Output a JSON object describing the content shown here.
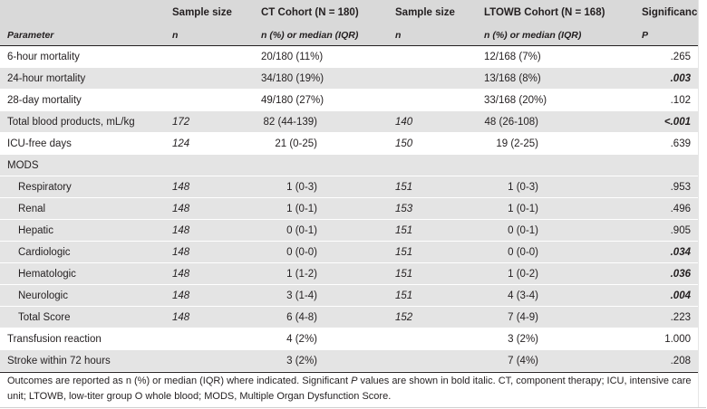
{
  "headers": {
    "top": {
      "sample_size_1": "Sample size",
      "ct_cohort": "CT Cohort (N = 180)",
      "sample_size_2": "Sample size",
      "ltowb_cohort": "LTOWB Cohort (N = 168)",
      "significance": "Significance"
    },
    "sub": {
      "parameter": "Parameter",
      "n1": "n",
      "ct_stat": "n (%) or median (IQR)",
      "n2": "n",
      "ltowb_stat": "n (%) or median (IQR)",
      "p": "P"
    }
  },
  "rows": [
    {
      "parameter": "6-hour mortality",
      "n_ct": "",
      "ct": "20/180 (11%)",
      "n_lt": "",
      "lt": "12/168 (7%)",
      "p": ".265",
      "sig": false,
      "indent": false,
      "shade": false,
      "align": "left"
    },
    {
      "parameter": "24-hour mortality",
      "n_ct": "",
      "ct": "34/180 (19%)",
      "n_lt": "",
      "lt": "13/168 (8%)",
      "p": ".003",
      "sig": true,
      "indent": false,
      "shade": true,
      "align": "left"
    },
    {
      "parameter": "28-day mortality",
      "n_ct": "",
      "ct": "49/180 (27%)",
      "n_lt": "",
      "lt": "33/168 (20%)",
      "p": ".102",
      "sig": false,
      "indent": false,
      "shade": false,
      "align": "left"
    },
    {
      "parameter": "Total blood products, mL/kg",
      "n_ct": "172",
      "ct": "82 (44-139)",
      "n_lt": "140",
      "lt": "48 (26-108)",
      "p": "<.001",
      "sig": true,
      "indent": false,
      "shade": true,
      "align": "right"
    },
    {
      "parameter": "ICU-free days",
      "n_ct": "124",
      "ct": "21 (0-25)",
      "n_lt": "150",
      "lt": "19 (2-25)",
      "p": ".639",
      "sig": false,
      "indent": false,
      "shade": false,
      "align": "right"
    },
    {
      "parameter": "MODS",
      "n_ct": "",
      "ct": "",
      "n_lt": "",
      "lt": "",
      "p": "",
      "sig": false,
      "indent": false,
      "shade": true,
      "align": "right"
    },
    {
      "parameter": "Respiratory",
      "n_ct": "148",
      "ct": "1 (0-3)",
      "n_lt": "151",
      "lt": "1 (0-3)",
      "p": ".953",
      "sig": false,
      "indent": true,
      "shade": true,
      "align": "right"
    },
    {
      "parameter": "Renal",
      "n_ct": "148",
      "ct": "1 (0-1)",
      "n_lt": "153",
      "lt": "1 (0-1)",
      "p": ".496",
      "sig": false,
      "indent": true,
      "shade": true,
      "align": "right"
    },
    {
      "parameter": "Hepatic",
      "n_ct": "148",
      "ct": "0 (0-1)",
      "n_lt": "151",
      "lt": "0 (0-1)",
      "p": ".905",
      "sig": false,
      "indent": true,
      "shade": true,
      "align": "right"
    },
    {
      "parameter": "Cardiologic",
      "n_ct": "148",
      "ct": "0 (0-0)",
      "n_lt": "151",
      "lt": "0 (0-0)",
      "p": ".034",
      "sig": true,
      "indent": true,
      "shade": true,
      "align": "right"
    },
    {
      "parameter": "Hematologic",
      "n_ct": "148",
      "ct": "1 (1-2)",
      "n_lt": "151",
      "lt": "1 (0-2)",
      "p": ".036",
      "sig": true,
      "indent": true,
      "shade": true,
      "align": "right"
    },
    {
      "parameter": "Neurologic",
      "n_ct": "148",
      "ct": "3 (1-4)",
      "n_lt": "151",
      "lt": "4 (3-4)",
      "p": ".004",
      "sig": true,
      "indent": true,
      "shade": true,
      "align": "right"
    },
    {
      "parameter": "Total Score",
      "n_ct": "148",
      "ct": "6 (4-8)",
      "n_lt": "152",
      "lt": "7 (4-9)",
      "p": ".223",
      "sig": false,
      "indent": true,
      "shade": true,
      "align": "right"
    },
    {
      "parameter": "Transfusion reaction",
      "n_ct": "",
      "ct": "4 (2%)",
      "n_lt": "",
      "lt": "3 (2%)",
      "p": "1.000",
      "sig": false,
      "indent": false,
      "shade": false,
      "align": "right"
    },
    {
      "parameter": "Stroke within 72 hours",
      "n_ct": "",
      "ct": "3 (2%)",
      "n_lt": "",
      "lt": "7 (4%)",
      "p": ".208",
      "sig": false,
      "indent": false,
      "shade": true,
      "align": "right"
    }
  ],
  "footnote": {
    "part1": "Outcomes are reported as n (%) or median (IQR) where indicated. Significant ",
    "p_italic": "P",
    "part2": " values are shown in bold italic. CT, component therapy; ICU, intensive care unit; LTOWB, low-titer group O whole blood; MODS, Multiple Organ Dysfunction Score."
  }
}
